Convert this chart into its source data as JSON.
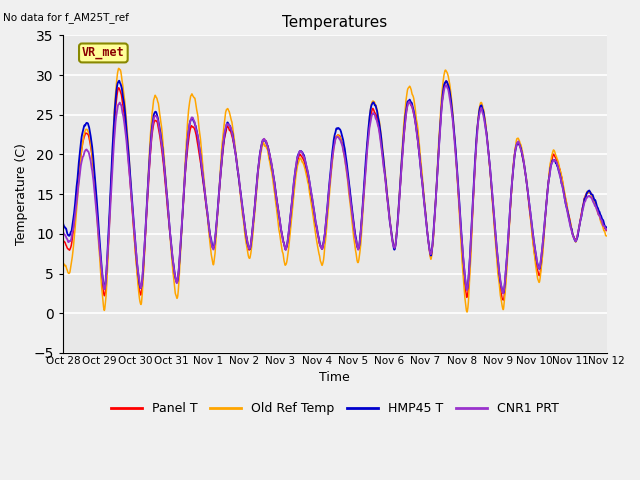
{
  "title": "Temperatures",
  "xlabel": "Time",
  "ylabel": "Temperature (C)",
  "ylim": [
    -5,
    35
  ],
  "annotation": "No data for f_AM25T_ref",
  "box_label": "VR_met",
  "series": [
    "Panel T",
    "Old Ref Temp",
    "HMP45 T",
    "CNR1 PRT"
  ],
  "colors": [
    "#ff0000",
    "#ffa500",
    "#0000cd",
    "#9932cc"
  ],
  "bg_color": "#e8e8e8",
  "tick_labels": [
    "Oct 28",
    "Oct 29",
    "Oct 30",
    "Oct 31",
    "Nov 1",
    "Nov 2",
    "Nov 3",
    "Nov 4",
    "Nov 5",
    "Nov 6",
    "Nov 7",
    "Nov 8",
    "Nov 9",
    "Nov 10",
    "Nov 11",
    "Nov 12"
  ],
  "yticks": [
    -5,
    0,
    5,
    10,
    15,
    20,
    25,
    30,
    35
  ],
  "n_days": 15,
  "fig_facecolor": "#f0f0f0",
  "panel_day_max": [
    10,
    31,
    26,
    23,
    24,
    23,
    21,
    19,
    25,
    26,
    27,
    31,
    22,
    21,
    19,
    12
  ],
  "panel_day_min": [
    9,
    2,
    2,
    3,
    8,
    8,
    8,
    8,
    8,
    8,
    8,
    2,
    1,
    4,
    9,
    10
  ],
  "old_day_max": [
    8,
    33,
    29,
    26,
    29,
    23,
    20,
    19,
    25,
    28,
    29,
    32,
    22,
    22,
    19,
    12
  ],
  "old_day_min": [
    6,
    0,
    1,
    1,
    6,
    7,
    6,
    6,
    6,
    8,
    8,
    0,
    0,
    3,
    9,
    9
  ],
  "hmp45_day_max": [
    12,
    32,
    27,
    24,
    25,
    23,
    21,
    20,
    26,
    27,
    27,
    31,
    22,
    21,
    18,
    13
  ],
  "hmp45_day_min": [
    11,
    3,
    3,
    3,
    8,
    8,
    8,
    8,
    8,
    8,
    8,
    3,
    2,
    5,
    9,
    10
  ],
  "cnr1_day_max": [
    11,
    27,
    26,
    24,
    25,
    23,
    21,
    20,
    24,
    26,
    27,
    30,
    22,
    21,
    18,
    12
  ],
  "cnr1_day_min": [
    10,
    3,
    3,
    3,
    8,
    8,
    8,
    8,
    8,
    8,
    8,
    3,
    2,
    5,
    9,
    10
  ],
  "peak_time": 0.55,
  "trough_time": 0.15,
  "sharpness": 3.0,
  "pts_per_day": 144
}
